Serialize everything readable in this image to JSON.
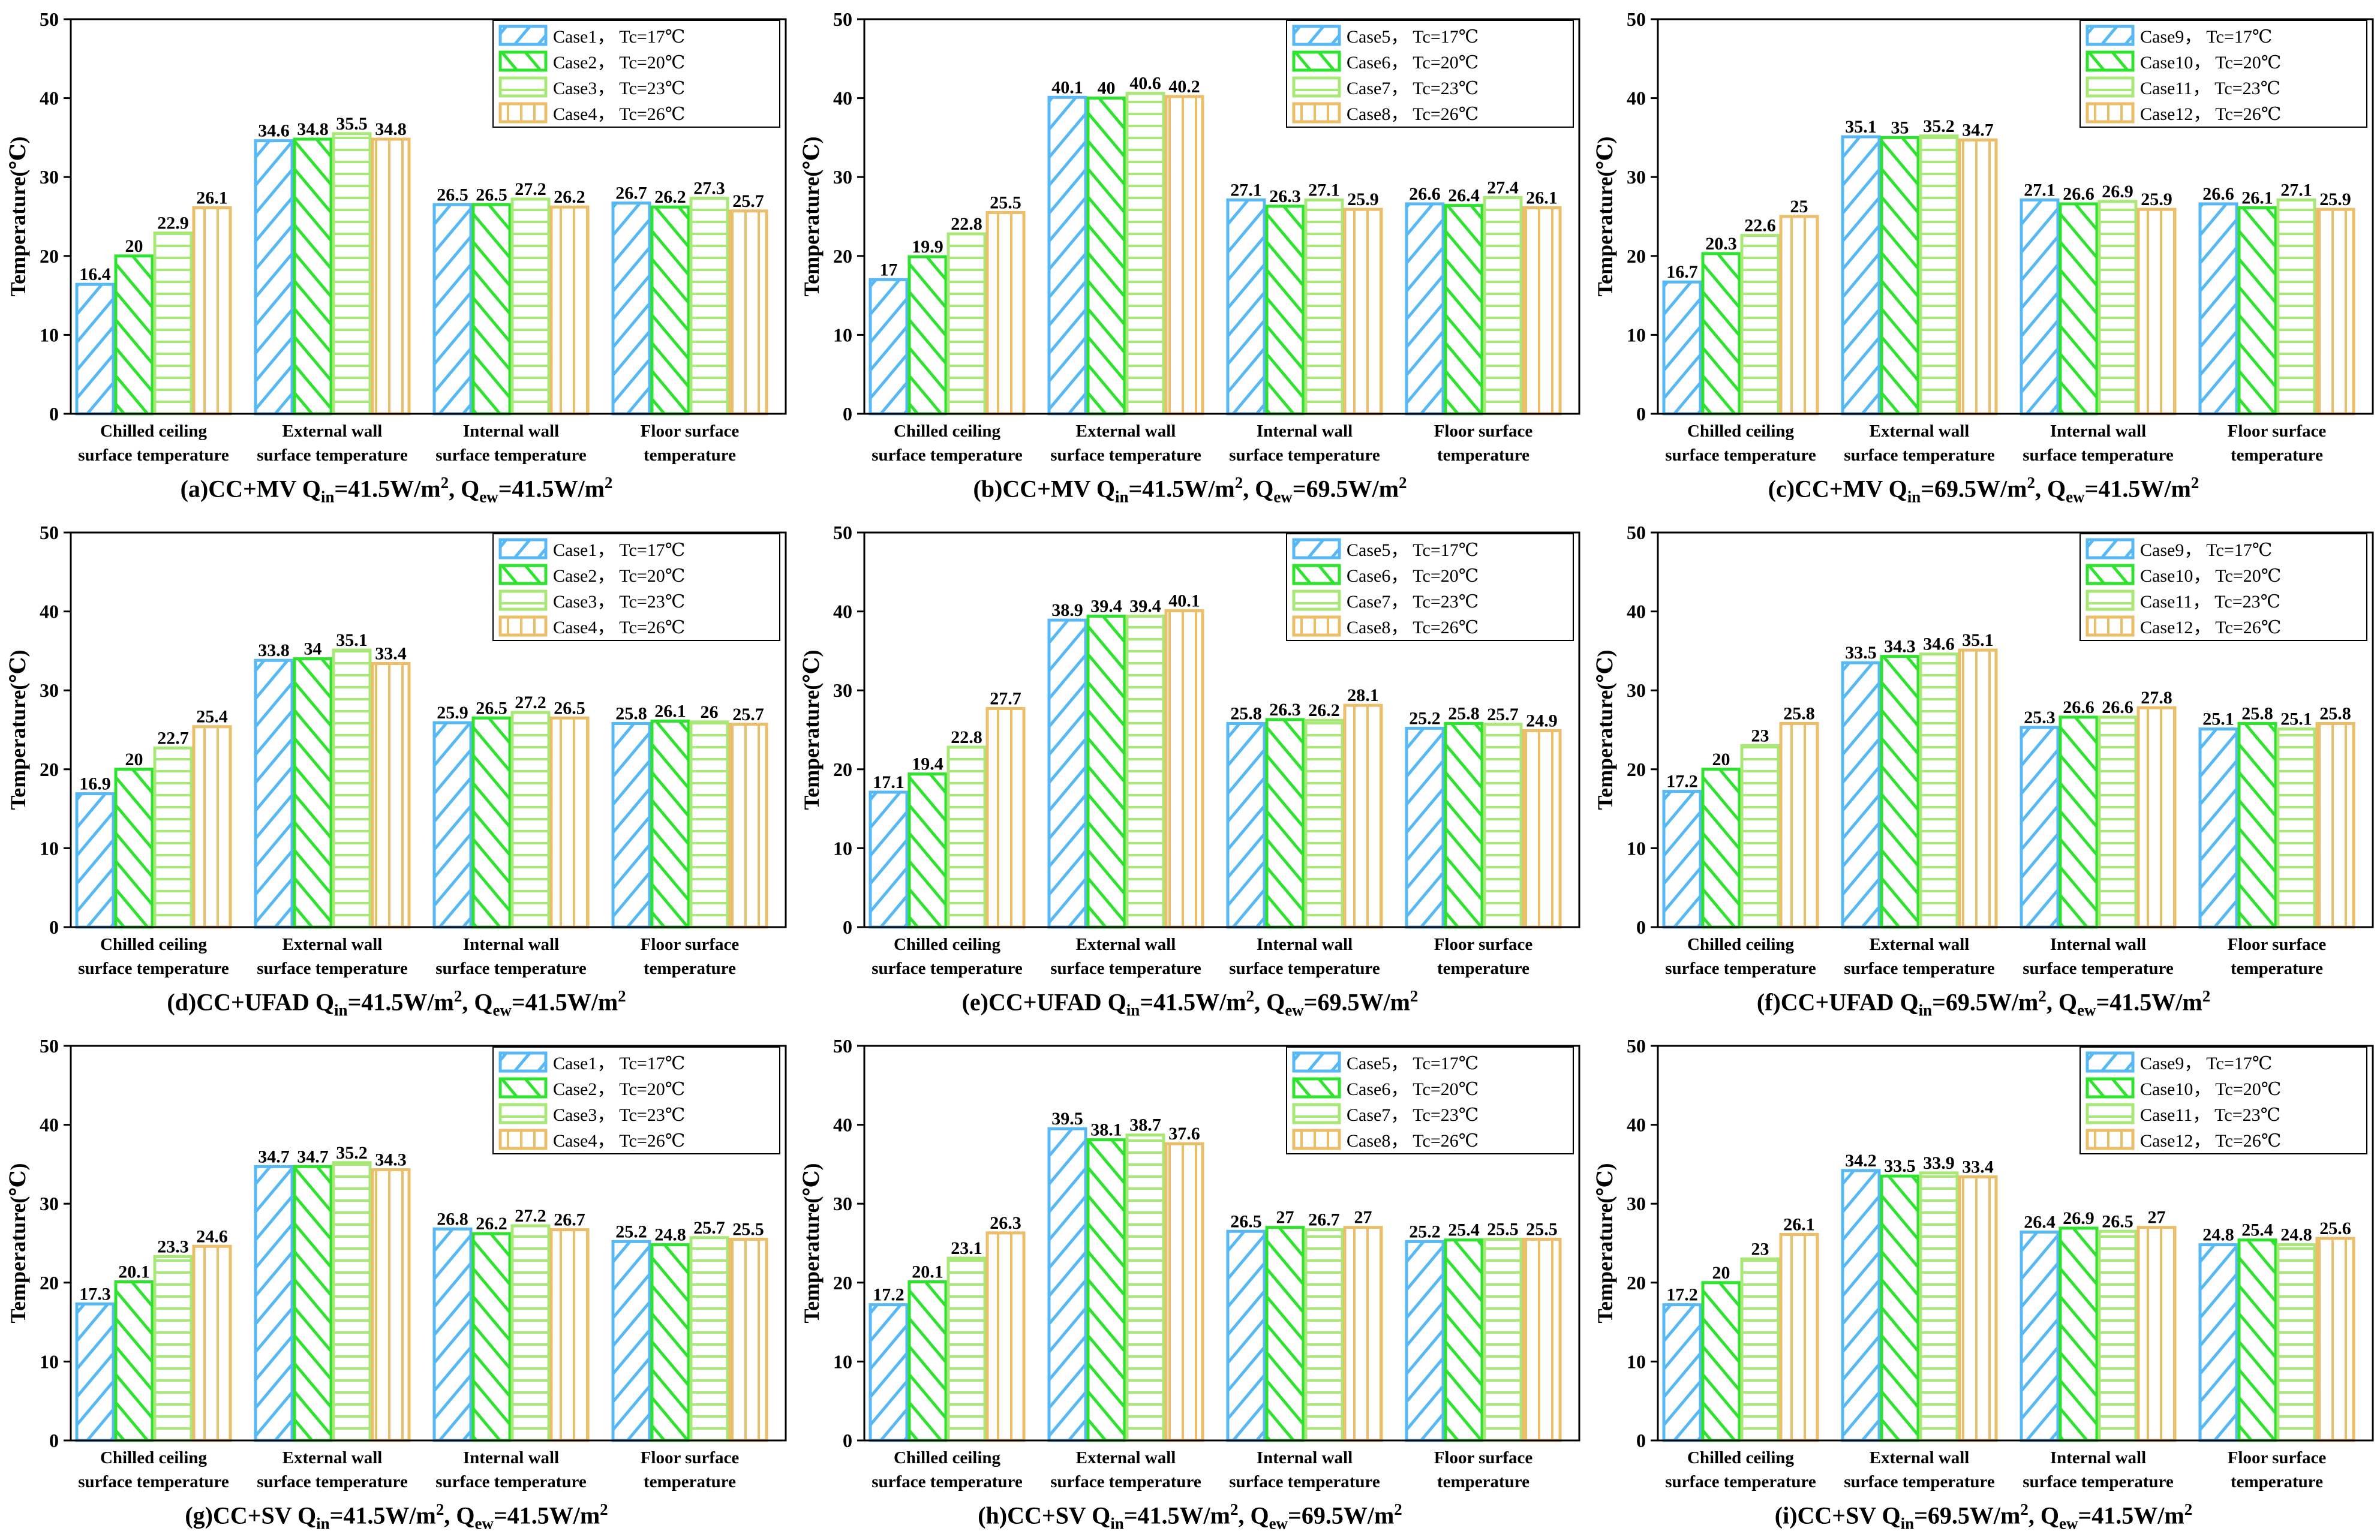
{
  "colors": {
    "case_a": "#56b8f4",
    "case_b": "#2ee32e",
    "case_c": "#a8e877",
    "case_d": "#ebbe69",
    "axis": "#000000"
  },
  "chart_data": [
    {
      "type": "bar",
      "caption": {
        "main": "(a)CC+MV Q",
        "s1": "in",
        "t1": "=41.5W/m",
        "p1": "2",
        "t2": ", Q",
        "s2": "ew",
        "t3": "=41.5W/m",
        "p2": "2"
      },
      "ylabel": "Temperature(℃)",
      "ylim": [
        0,
        50
      ],
      "yticks": [
        "0",
        "10",
        "20",
        "30",
        "40",
        "50"
      ],
      "categories": [
        [
          "Chilled ceiling",
          "surface temperature"
        ],
        [
          "External wall",
          "surface temperature"
        ],
        [
          "Internal wall",
          "surface temperature"
        ],
        [
          "Floor surface",
          "temperature"
        ]
      ],
      "legend_position": "top-right",
      "series": [
        {
          "name": "Case1， Tc=17℃",
          "values": [
            16.4,
            34.6,
            26.5,
            26.7
          ]
        },
        {
          "name": "Case2， Tc=20℃",
          "values": [
            20,
            34.8,
            26.5,
            26.2
          ]
        },
        {
          "name": "Case3， Tc=23℃",
          "values": [
            22.9,
            35.5,
            27.2,
            27.3
          ]
        },
        {
          "name": "Case4， Tc=26℃",
          "values": [
            26.1,
            34.8,
            26.2,
            25.7
          ]
        }
      ]
    },
    {
      "type": "bar",
      "caption": {
        "main": "(b)CC+MV Q",
        "s1": "in",
        "t1": "=41.5W/m",
        "p1": "2",
        "t2": ", Q",
        "s2": "ew",
        "t3": "=69.5W/m",
        "p2": "2"
      },
      "ylabel": "Temperature(℃)",
      "ylim": [
        0,
        50
      ],
      "yticks": [
        "0",
        "10",
        "20",
        "30",
        "40",
        "50"
      ],
      "categories": [
        [
          "Chilled ceiling",
          "surface temperature"
        ],
        [
          "External wall",
          "surface temperature"
        ],
        [
          "Internal wall",
          "surface temperature"
        ],
        [
          "Floor surface",
          "temperature"
        ]
      ],
      "legend_position": "top-right",
      "series": [
        {
          "name": "Case5， Tc=17℃",
          "values": [
            17,
            40.1,
            27.1,
            26.6
          ]
        },
        {
          "name": "Case6， Tc=20℃",
          "values": [
            19.9,
            40,
            26.3,
            26.4
          ]
        },
        {
          "name": "Case7， Tc=23℃",
          "values": [
            22.8,
            40.6,
            27.1,
            27.4
          ]
        },
        {
          "name": "Case8， Tc=26℃",
          "values": [
            25.5,
            40.2,
            25.9,
            26.1
          ]
        }
      ]
    },
    {
      "type": "bar",
      "caption": {
        "main": "(c)CC+MV Q",
        "s1": "in",
        "t1": "=69.5W/m",
        "p1": "2",
        "t2": ", Q",
        "s2": "ew",
        "t3": "=41.5W/m",
        "p2": "2"
      },
      "ylabel": "Temperature(℃)",
      "ylim": [
        0,
        50
      ],
      "yticks": [
        "0",
        "10",
        "20",
        "30",
        "40",
        "50"
      ],
      "categories": [
        [
          "Chilled ceiling",
          "surface temperature"
        ],
        [
          "External wall",
          "surface temperature"
        ],
        [
          "Internal wall",
          "surface temperature"
        ],
        [
          "Floor surface",
          "temperature"
        ]
      ],
      "legend_position": "top-right",
      "series": [
        {
          "name": "Case9， Tc=17℃",
          "values": [
            16.7,
            35.1,
            27.1,
            26.6
          ]
        },
        {
          "name": "Case10， Tc=20℃",
          "values": [
            20.3,
            35,
            26.6,
            26.1
          ]
        },
        {
          "name": "Case11， Tc=23℃",
          "values": [
            22.6,
            35.2,
            26.9,
            27.1
          ]
        },
        {
          "name": "Case12， Tc=26℃",
          "values": [
            25,
            34.7,
            25.9,
            25.9
          ]
        }
      ]
    },
    {
      "type": "bar",
      "caption": {
        "main": "(d)CC+UFAD Q",
        "s1": "in",
        "t1": "=41.5W/m",
        "p1": "2",
        "t2": ", Q",
        "s2": "ew",
        "t3": "=41.5W/m",
        "p2": "2"
      },
      "ylabel": "Temperature(℃)",
      "ylim": [
        0,
        50
      ],
      "yticks": [
        "0",
        "10",
        "20",
        "30",
        "40",
        "50"
      ],
      "categories": [
        [
          "Chilled ceiling",
          "surface temperature"
        ],
        [
          "External wall",
          "surface temperature"
        ],
        [
          "Internal wall",
          "surface temperature"
        ],
        [
          "Floor surface",
          "temperature"
        ]
      ],
      "legend_position": "top-right",
      "series": [
        {
          "name": "Case1， Tc=17℃",
          "values": [
            16.9,
            33.8,
            25.9,
            25.8
          ]
        },
        {
          "name": "Case2， Tc=20℃",
          "values": [
            20,
            34,
            26.5,
            26.1
          ]
        },
        {
          "name": "Case3， Tc=23℃",
          "values": [
            22.7,
            35.1,
            27.2,
            26
          ]
        },
        {
          "name": "Case4， Tc=26℃",
          "values": [
            25.4,
            33.4,
            26.5,
            25.7
          ]
        }
      ]
    },
    {
      "type": "bar",
      "caption": {
        "main": "(e)CC+UFAD Q",
        "s1": "in",
        "t1": "=41.5W/m",
        "p1": "2",
        "t2": ", Q",
        "s2": "ew",
        "t3": "=69.5W/m",
        "p2": "2"
      },
      "ylabel": "Temperature(℃)",
      "ylim": [
        0,
        50
      ],
      "yticks": [
        "0",
        "10",
        "20",
        "30",
        "40",
        "50"
      ],
      "categories": [
        [
          "Chilled ceiling",
          "surface temperature"
        ],
        [
          "External wall",
          "surface temperature"
        ],
        [
          "Internal wall",
          "surface temperature"
        ],
        [
          "Floor surface",
          "temperature"
        ]
      ],
      "legend_position": "top-right",
      "series": [
        {
          "name": "Case5， Tc=17℃",
          "values": [
            17.1,
            38.9,
            25.8,
            25.2
          ]
        },
        {
          "name": "Case6， Tc=20℃",
          "values": [
            19.4,
            39.4,
            26.3,
            25.8
          ]
        },
        {
          "name": "Case7， Tc=23℃",
          "values": [
            22.8,
            39.4,
            26.2,
            25.7
          ]
        },
        {
          "name": "Case8， Tc=26℃",
          "values": [
            27.7,
            40.1,
            28.1,
            24.9
          ]
        }
      ]
    },
    {
      "type": "bar",
      "caption": {
        "main": "(f)CC+UFAD Q",
        "s1": "in",
        "t1": "=69.5W/m",
        "p1": "2",
        "t2": ", Q",
        "s2": "ew",
        "t3": "=41.5W/m",
        "p2": "2"
      },
      "ylabel": "Temperature(℃)",
      "ylim": [
        0,
        50
      ],
      "yticks": [
        "0",
        "10",
        "20",
        "30",
        "40",
        "50"
      ],
      "categories": [
        [
          "Chilled ceiling",
          "surface temperature"
        ],
        [
          "External wall",
          "surface temperature"
        ],
        [
          "Internal wall",
          "surface temperature"
        ],
        [
          "Floor surface",
          "temperature"
        ]
      ],
      "legend_position": "top-right",
      "series": [
        {
          "name": "Case9， Tc=17℃",
          "values": [
            17.2,
            33.5,
            25.3,
            25.1
          ]
        },
        {
          "name": "Case10， Tc=20℃",
          "values": [
            20,
            34.3,
            26.6,
            25.8
          ]
        },
        {
          "name": "Case11， Tc=23℃",
          "values": [
            23,
            34.6,
            26.6,
            25.1
          ]
        },
        {
          "name": "Case12， Tc=26℃",
          "values": [
            25.8,
            35.1,
            27.8,
            25.8
          ]
        }
      ]
    },
    {
      "type": "bar",
      "caption": {
        "main": "(g)CC+SV Q",
        "s1": "in",
        "t1": "=41.5W/m",
        "p1": "2",
        "t2": ", Q",
        "s2": "ew",
        "t3": "=41.5W/m",
        "p2": "2"
      },
      "ylabel": "Temperature(℃)",
      "ylim": [
        0,
        50
      ],
      "yticks": [
        "0",
        "10",
        "20",
        "30",
        "40",
        "50"
      ],
      "categories": [
        [
          "Chilled ceiling",
          "surface temperature"
        ],
        [
          "External wall",
          "surface temperature"
        ],
        [
          "Internal wall",
          "surface temperature"
        ],
        [
          "Floor surface",
          "temperature"
        ]
      ],
      "legend_position": "top-right",
      "series": [
        {
          "name": "Case1， Tc=17℃",
          "values": [
            17.3,
            34.7,
            26.8,
            25.2
          ]
        },
        {
          "name": "Case2， Tc=20℃",
          "values": [
            20.1,
            34.7,
            26.2,
            24.8
          ]
        },
        {
          "name": "Case3， Tc=23℃",
          "values": [
            23.3,
            35.2,
            27.2,
            25.7
          ]
        },
        {
          "name": "Case4， Tc=26℃",
          "values": [
            24.6,
            34.3,
            26.7,
            25.5
          ]
        }
      ]
    },
    {
      "type": "bar",
      "caption": {
        "main": "(h)CC+SV Q",
        "s1": "in",
        "t1": "=41.5W/m",
        "p1": "2",
        "t2": ", Q",
        "s2": "ew",
        "t3": "=69.5W/m",
        "p2": "2"
      },
      "ylabel": "Temperature(℃)",
      "ylim": [
        0,
        50
      ],
      "yticks": [
        "0",
        "10",
        "20",
        "30",
        "40",
        "50"
      ],
      "categories": [
        [
          "Chilled ceiling",
          "surface temperature"
        ],
        [
          "External wall",
          "surface temperature"
        ],
        [
          "Internal wall",
          "surface temperature"
        ],
        [
          "Floor surface",
          "temperature"
        ]
      ],
      "legend_position": "top-right",
      "series": [
        {
          "name": "Case5， Tc=17℃",
          "values": [
            17.2,
            39.5,
            26.5,
            25.2
          ]
        },
        {
          "name": "Case6， Tc=20℃",
          "values": [
            20.1,
            38.1,
            27,
            25.4
          ]
        },
        {
          "name": "Case7， Tc=23℃",
          "values": [
            23.1,
            38.7,
            26.7,
            25.5
          ]
        },
        {
          "name": "Case8， Tc=26℃",
          "values": [
            26.3,
            37.6,
            27,
            25.5
          ]
        }
      ]
    },
    {
      "type": "bar",
      "caption": {
        "main": "(i)CC+SV Q",
        "s1": "in",
        "t1": "=69.5W/m",
        "p1": "2",
        "t2": ", Q",
        "s2": "ew",
        "t3": "=41.5W/m",
        "p2": "2"
      },
      "ylabel": "Temperature(℃)",
      "ylim": [
        0,
        50
      ],
      "yticks": [
        "0",
        "10",
        "20",
        "30",
        "40",
        "50"
      ],
      "categories": [
        [
          "Chilled ceiling",
          "surface temperature"
        ],
        [
          "External wall",
          "surface temperature"
        ],
        [
          "Internal wall",
          "surface temperature"
        ],
        [
          "Floor surface",
          "temperature"
        ]
      ],
      "legend_position": "top-right",
      "series": [
        {
          "name": "Case9， Tc=17℃",
          "values": [
            17.2,
            34.2,
            26.4,
            24.8
          ]
        },
        {
          "name": "Case10， Tc=20℃",
          "values": [
            20,
            33.5,
            26.9,
            25.4
          ]
        },
        {
          "name": "Case11， Tc=23℃",
          "values": [
            23,
            33.9,
            26.5,
            24.8
          ]
        },
        {
          "name": "Case12， Tc=26℃",
          "values": [
            26.1,
            33.4,
            27,
            25.6
          ]
        }
      ]
    }
  ]
}
